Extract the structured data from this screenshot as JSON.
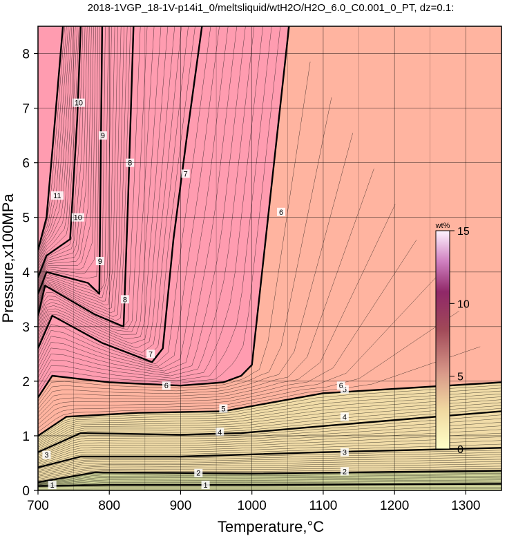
{
  "chart_data": {
    "type": "heatmap",
    "title": "2018-1VGP_18-1V-p14i1_0/meltsliquid/wtH2O/H2O_6.0_C0.001_0_PT, dz=0.1:",
    "xlabel": "Temperature,°C",
    "ylabel": "Pressure,x100MPa",
    "xlim": [
      700,
      1350
    ],
    "ylim": [
      0,
      8.5
    ],
    "x_ticks": [
      "700",
      "800",
      "900",
      "1000",
      "1100",
      "1200",
      "1300"
    ],
    "y_ticks": [
      "0",
      "1",
      "2",
      "3",
      "4",
      "5",
      "6",
      "7",
      "8"
    ],
    "x_tick_values": [
      700,
      800,
      900,
      1000,
      1100,
      1200,
      1300
    ],
    "y_tick_values": [
      0,
      1,
      2,
      3,
      4,
      5,
      6,
      7,
      8
    ],
    "grid": true,
    "colorbar": {
      "unit": "wt%",
      "ticks": [
        "0",
        "5",
        "10",
        "15"
      ],
      "tick_values": [
        0,
        5,
        10,
        15
      ],
      "range": [
        0,
        15
      ],
      "colors": [
        "#ffffc8",
        "#e8c8a0",
        "#c89080",
        "#a05060",
        "#802050",
        "#c070b0",
        "#ffffff"
      ]
    },
    "fill_colors": {
      "high_pressure_region": "#ffb4a0",
      "water_rich_region": "#ff9cb0",
      "low_pressure_band": "#f0e0a8",
      "base_band": "#d8dca0"
    },
    "contour_lines": [
      {
        "level": 1,
        "points": [
          [
            700,
            0.08
          ],
          [
            800,
            0.1
          ],
          [
            1000,
            0.1
          ],
          [
            1350,
            0.12
          ]
        ]
      },
      {
        "level": 2,
        "points": [
          [
            700,
            0.15
          ],
          [
            780,
            0.33
          ],
          [
            1000,
            0.31
          ],
          [
            1350,
            0.36
          ]
        ]
      },
      {
        "level": 3,
        "points": [
          [
            700,
            0.42
          ],
          [
            760,
            0.62
          ],
          [
            900,
            0.62
          ],
          [
            1100,
            0.7
          ],
          [
            1350,
            0.78
          ]
        ]
      },
      {
        "level": 4,
        "points": [
          [
            700,
            0.7
          ],
          [
            760,
            1.05
          ],
          [
            900,
            1.02
          ],
          [
            985,
            1.05
          ],
          [
            1120,
            1.2
          ],
          [
            1350,
            1.45
          ]
        ]
      },
      {
        "level": 5,
        "points": [
          [
            700,
            1.0
          ],
          [
            740,
            1.35
          ],
          [
            840,
            1.42
          ],
          [
            960,
            1.45
          ],
          [
            1100,
            1.78
          ],
          [
            1350,
            1.98
          ]
        ]
      },
      {
        "level": 6,
        "points": [
          [
            700,
            1.7
          ],
          [
            720,
            2.1
          ],
          [
            800,
            1.98
          ],
          [
            900,
            1.92
          ],
          [
            960,
            1.98
          ],
          [
            985,
            2.1
          ],
          [
            1000,
            2.3
          ],
          [
            1052,
            8.5
          ]
        ]
      },
      {
        "level": 7,
        "points": [
          [
            700,
            2.6
          ],
          [
            720,
            3.2
          ],
          [
            790,
            2.7
          ],
          [
            860,
            2.35
          ],
          [
            875,
            2.6
          ],
          [
            890,
            4.6
          ],
          [
            910,
            6.6
          ],
          [
            930,
            8.5
          ]
        ]
      },
      {
        "level": 8,
        "points": [
          [
            700,
            3.2
          ],
          [
            710,
            3.75
          ],
          [
            780,
            3.22
          ],
          [
            820,
            3.0
          ],
          [
            826,
            5.2
          ],
          [
            834,
            8.5
          ]
        ]
      },
      {
        "level": 9,
        "points": [
          [
            700,
            3.6
          ],
          [
            712,
            4.0
          ],
          [
            770,
            3.8
          ],
          [
            786,
            3.6
          ],
          [
            790,
            8.5
          ]
        ]
      },
      {
        "level": 10,
        "points": [
          [
            700,
            3.9
          ],
          [
            712,
            4.3
          ],
          [
            745,
            4.6
          ],
          [
            755,
            6.8
          ],
          [
            760,
            8.5
          ]
        ]
      },
      {
        "level": 11,
        "points": [
          [
            700,
            4.4
          ],
          [
            712,
            5.0
          ],
          [
            722,
            6.5
          ],
          [
            735,
            8.5
          ]
        ]
      }
    ],
    "contour_label_values": [
      "1",
      "1",
      "2",
      "2",
      "3",
      "3",
      "4",
      "4",
      "5",
      "5",
      "6",
      "6",
      "6",
      "7",
      "7",
      "8",
      "8",
      "9",
      "9",
      "10",
      "10",
      "11"
    ],
    "contour_label_positions": [
      [
        720,
        0.1
      ],
      [
        935,
        0.1
      ],
      [
        925,
        0.32
      ],
      [
        1130,
        0.35
      ],
      [
        712,
        0.65
      ],
      [
        1130,
        0.7
      ],
      [
        955,
        1.07
      ],
      [
        1130,
        1.35
      ],
      [
        960,
        1.5
      ],
      [
        1130,
        1.85
      ],
      [
        880,
        1.92
      ],
      [
        1125,
        1.92
      ],
      [
        1041,
        5.1
      ],
      [
        858,
        2.5
      ],
      [
        907,
        5.8
      ],
      [
        822,
        3.5
      ],
      [
        829,
        6.0
      ],
      [
        787,
        4.2
      ],
      [
        791,
        6.5
      ],
      [
        756,
        5.0
      ],
      [
        757,
        7.1
      ],
      [
        727,
        5.4
      ]
    ]
  }
}
